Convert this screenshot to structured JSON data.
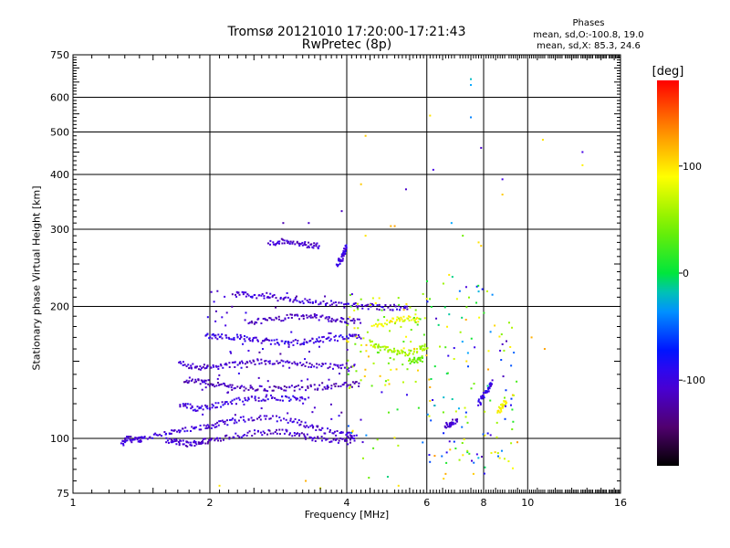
{
  "chart_data": {
    "type": "scatter",
    "title": "Tromsø 20121010 17:20:00-17:21:43",
    "subtitle": "RwPretec (8p)",
    "xlabel": "Frequency [MHz]",
    "ylabel": "Stationary phase Virtual Height [km]",
    "x_scale": "log",
    "y_scale": "log",
    "xlim": [
      1,
      16
    ],
    "ylim": [
      75,
      750
    ],
    "x_ticks": [
      1,
      2,
      4,
      6,
      8,
      10,
      16
    ],
    "y_ticks": [
      75,
      100,
      200,
      300,
      400,
      500,
      600,
      750
    ],
    "grid": true,
    "phases_legend": {
      "title": "Phases",
      "o_line": "mean, sd,O:-100.8, 19.0",
      "x_line": "mean, sd,X: 85.3, 24.6"
    },
    "colorbar": {
      "label": "[deg]",
      "range": [
        -180,
        180
      ],
      "ticks": [
        100,
        0,
        -100
      ]
    },
    "traces": [
      {
        "x": [
          1.28,
          1.32,
          1.38,
          1.42,
          1.6,
          1.75,
          1.95,
          2.1,
          2.3,
          2.6,
          3.0,
          3.3,
          3.6,
          4.0,
          4.2
        ],
        "y": [
          97,
          100,
          99,
          100,
          103,
          104,
          106,
          108,
          110,
          112,
          110,
          107,
          104,
          102,
          100
        ],
        "phase": -105
      },
      {
        "x": [
          1.6,
          1.7,
          1.8,
          1.9,
          2.0,
          2.2,
          2.5,
          2.8,
          3.1,
          3.4,
          3.8,
          4.1
        ],
        "y": [
          99,
          98,
          97,
          98,
          99,
          101,
          103,
          104,
          102,
          100,
          99,
          98
        ],
        "phase": -110
      },
      {
        "x": [
          1.72,
          1.85,
          2.0,
          2.2,
          2.45,
          2.7,
          3.0,
          3.3
        ],
        "y": [
          120,
          117,
          118,
          121,
          123,
          124,
          123,
          124
        ],
        "phase": -100
      },
      {
        "x": [
          1.75,
          1.9,
          2.05,
          2.25,
          2.5,
          2.8,
          3.1,
          3.5,
          3.9,
          4.3
        ],
        "y": [
          136,
          135,
          133,
          131,
          130,
          130,
          130,
          131,
          132,
          133
        ],
        "phase": -115
      },
      {
        "x": [
          1.72,
          1.85,
          2.0,
          2.2,
          2.45,
          2.7,
          3.0,
          3.4,
          3.8,
          4.2
        ],
        "y": [
          148,
          146,
          145,
          147,
          149,
          150,
          148,
          147,
          146,
          146
        ],
        "phase": -108
      },
      {
        "x": [
          1.95,
          2.1,
          2.3,
          2.5,
          2.75,
          3.0,
          3.3,
          3.6,
          4.0,
          4.3
        ],
        "y": [
          172,
          171,
          170,
          168,
          166,
          165,
          167,
          168,
          170,
          171
        ],
        "phase": -100
      },
      {
        "x": [
          2.4,
          2.7,
          3.0,
          3.3,
          3.6,
          3.9,
          4.3
        ],
        "y": [
          184,
          186,
          189,
          190,
          188,
          186,
          184
        ],
        "phase": -112
      },
      {
        "x": [
          2.25,
          2.45,
          2.7,
          3.0,
          3.3,
          3.7,
          4.1,
          4.5,
          5.0,
          5.5
        ],
        "y": [
          213,
          212,
          210,
          208,
          205,
          203,
          201,
          200,
          199,
          198
        ],
        "phase": -105
      },
      {
        "x": [
          2.7,
          2.9,
          3.1,
          3.3,
          3.5
        ],
        "y": [
          278,
          282,
          280,
          276,
          275
        ],
        "phase": -110
      },
      {
        "x": [
          3.8,
          3.9,
          3.95,
          4.0
        ],
        "y": [
          250,
          257,
          265,
          275
        ],
        "phase": -100
      },
      {
        "x": [
          4.5,
          4.8,
          5.1,
          5.4,
          5.8,
          6.0
        ],
        "y": [
          165,
          160,
          158,
          156,
          160,
          162
        ],
        "phase": 60
      },
      {
        "x": [
          4.6,
          5.0,
          5.4,
          5.8
        ],
        "y": [
          180,
          185,
          188,
          186
        ],
        "phase": 85
      },
      {
        "x": [
          5.5,
          5.7,
          5.9
        ],
        "y": [
          150,
          151,
          152
        ],
        "phase": 40
      },
      {
        "x": [
          6.6,
          6.8,
          7.0
        ],
        "y": [
          107,
          108,
          110
        ],
        "phase": -105
      },
      {
        "x": [
          7.8,
          8.0,
          8.2,
          8.4
        ],
        "y": [
          120,
          125,
          130,
          135
        ],
        "phase": -95
      },
      {
        "x": [
          8.6,
          8.8,
          9.0
        ],
        "y": [
          115,
          118,
          122
        ],
        "phase": 90
      }
    ],
    "points": [
      {
        "x": 7.5,
        "y": 660,
        "phase": -20
      },
      {
        "x": 7.5,
        "y": 640,
        "phase": -30
      },
      {
        "x": 7.5,
        "y": 540,
        "phase": -40
      },
      {
        "x": 6.1,
        "y": 545,
        "phase": 100
      },
      {
        "x": 4.4,
        "y": 490,
        "phase": 110
      },
      {
        "x": 7.9,
        "y": 460,
        "phase": -110
      },
      {
        "x": 10.8,
        "y": 480,
        "phase": 100
      },
      {
        "x": 13.2,
        "y": 450,
        "phase": -100
      },
      {
        "x": 13.2,
        "y": 420,
        "phase": 95
      },
      {
        "x": 6.2,
        "y": 410,
        "phase": -100
      },
      {
        "x": 8.8,
        "y": 390,
        "phase": -100
      },
      {
        "x": 4.3,
        "y": 380,
        "phase": 110
      },
      {
        "x": 8.8,
        "y": 360,
        "phase": 110
      },
      {
        "x": 5.4,
        "y": 370,
        "phase": -110
      },
      {
        "x": 3.9,
        "y": 330,
        "phase": -115
      },
      {
        "x": 2.9,
        "y": 310,
        "phase": -120
      },
      {
        "x": 3.3,
        "y": 310,
        "phase": -110
      },
      {
        "x": 5.0,
        "y": 305,
        "phase": 120
      },
      {
        "x": 5.1,
        "y": 305,
        "phase": 125
      },
      {
        "x": 6.8,
        "y": 310,
        "phase": -30
      },
      {
        "x": 7.2,
        "y": 290,
        "phase": 40
      },
      {
        "x": 7.8,
        "y": 280,
        "phase": 100
      },
      {
        "x": 7.9,
        "y": 275,
        "phase": 110
      },
      {
        "x": 4.4,
        "y": 290,
        "phase": 100
      },
      {
        "x": 7.6,
        "y": 83,
        "phase": 110
      },
      {
        "x": 6.6,
        "y": 83,
        "phase": 120
      },
      {
        "x": 3.25,
        "y": 80,
        "phase": 120
      },
      {
        "x": 3.5,
        "y": 77,
        "phase": 90
      },
      {
        "x": 5.2,
        "y": 78,
        "phase": 100
      },
      {
        "x": 10.2,
        "y": 170,
        "phase": 120
      },
      {
        "x": 10.9,
        "y": 160,
        "phase": 125
      },
      {
        "x": 2.1,
        "y": 78,
        "phase": 100
      }
    ],
    "scatter_regions": [
      {
        "x_range": [
          4.0,
          6.0
        ],
        "y_range": [
          130,
          215
        ],
        "count": 90,
        "phase_min": 20,
        "phase_max": 120
      },
      {
        "x_range": [
          6.0,
          9.5
        ],
        "y_range": [
          85,
          240
        ],
        "count": 120,
        "phase_min": -120,
        "phase_max": 130
      },
      {
        "x_range": [
          1.9,
          4.2
        ],
        "y_range": [
          110,
          220
        ],
        "count": 80,
        "phase_min": -130,
        "phase_max": -90
      },
      {
        "x_range": [
          4.0,
          9.0
        ],
        "y_range": [
          80,
          130
        ],
        "count": 40,
        "phase_min": -120,
        "phase_max": 110
      }
    ]
  }
}
